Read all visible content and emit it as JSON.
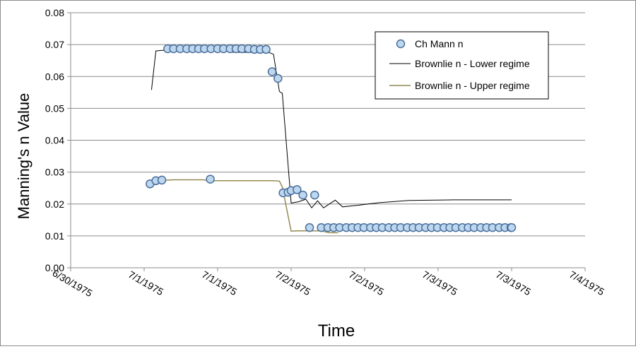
{
  "chart_data": {
    "type": "scatter",
    "title": "",
    "xlabel": "Time",
    "ylabel": "Manning's n Value",
    "x_ticks": [
      "6/30/1975",
      "7/1/1975",
      "7/1/1975",
      "7/2/1975",
      "7/2/1975",
      "7/3/1975",
      "7/3/1975",
      "7/4/1975"
    ],
    "x_tick_days": [
      0,
      0.5,
      1.0,
      1.5,
      2.0,
      2.5,
      3.0,
      3.5
    ],
    "xlim_days": [
      0,
      3.5
    ],
    "ylim": [
      0,
      0.08
    ],
    "y_ticks": [
      "0.00",
      "0.01",
      "0.02",
      "0.03",
      "0.04",
      "0.05",
      "0.06",
      "0.07",
      "0.08"
    ],
    "y_tick_values": [
      0,
      0.01,
      0.02,
      0.03,
      0.04,
      0.05,
      0.06,
      0.07,
      0.08
    ],
    "grid": "horizontal",
    "legend_position": "top-right",
    "series": [
      {
        "name": "Ch Mann n",
        "kind": "markers",
        "color": "#bdd7ee",
        "edge": "#4a6e9c",
        "x": [
          0.54,
          0.58,
          0.62,
          0.66,
          0.7,
          0.745,
          0.79,
          0.83,
          0.87,
          0.91,
          0.955,
          0.95,
          1.0,
          1.04,
          1.085,
          1.125,
          1.165,
          1.21,
          1.25,
          1.29,
          1.33,
          1.37,
          1.41,
          1.445,
          1.48,
          1.5,
          1.54,
          1.58,
          1.625,
          1.66,
          1.705,
          1.75,
          1.79,
          1.83,
          1.875,
          1.915,
          1.955,
          1.995,
          2.04,
          2.08,
          2.12,
          2.165,
          2.205,
          2.245,
          2.29,
          2.33,
          2.37,
          2.415,
          2.455,
          2.495,
          2.54,
          2.58,
          2.62,
          2.665,
          2.705,
          2.745,
          2.79,
          2.83,
          2.87,
          2.915,
          2.955,
          2.995,
          3.0
        ],
        "y": [
          0.0263,
          0.0273,
          0.0275,
          0.0687,
          0.0687,
          0.0687,
          0.0687,
          0.0687,
          0.0687,
          0.0687,
          0.0687,
          0.0278,
          0.0687,
          0.0687,
          0.0687,
          0.0687,
          0.0687,
          0.0687,
          0.0685,
          0.0685,
          0.0685,
          0.0615,
          0.0594,
          0.0235,
          0.0237,
          0.0242,
          0.0245,
          0.0228,
          0.0126,
          0.0228,
          0.0126,
          0.0126,
          0.0126,
          0.0126,
          0.0126,
          0.0126,
          0.0126,
          0.0126,
          0.0126,
          0.0126,
          0.0126,
          0.0126,
          0.0126,
          0.0126,
          0.0126,
          0.0126,
          0.0126,
          0.0126,
          0.0126,
          0.0126,
          0.0126,
          0.0126,
          0.0126,
          0.0126,
          0.0126,
          0.0126,
          0.0126,
          0.0126,
          0.0126,
          0.0126,
          0.0126,
          0.0126,
          0.0126
        ]
      },
      {
        "name": "Brownlie n - Lower regime",
        "kind": "line",
        "color": "#000000",
        "x": [
          0.55,
          0.58,
          0.62,
          0.7,
          0.9,
          0.95,
          1.0,
          1.1,
          1.35,
          1.38,
          1.42,
          1.44,
          1.5,
          1.55,
          1.6,
          1.64,
          1.68,
          1.72,
          1.8,
          1.85,
          1.95,
          2.1,
          2.3,
          2.6,
          3.0
        ],
        "y": [
          0.0558,
          0.068,
          0.0682,
          0.0682,
          0.0683,
          0.0685,
          0.0683,
          0.0676,
          0.0675,
          0.067,
          0.0553,
          0.0547,
          0.0203,
          0.0207,
          0.0215,
          0.0188,
          0.021,
          0.0188,
          0.0212,
          0.0191,
          0.0196,
          0.0204,
          0.0211,
          0.0213,
          0.0213
        ]
      },
      {
        "name": "Brownlie n - Upper regime",
        "kind": "line",
        "color": "#948a54",
        "x": [
          0.55,
          0.62,
          0.7,
          0.9,
          0.95,
          1.0,
          1.2,
          1.3,
          1.37,
          1.42,
          1.44,
          1.5,
          1.55,
          1.62,
          1.7,
          1.76,
          1.82
        ],
        "y": [
          0.0274,
          0.0274,
          0.0276,
          0.0276,
          0.0273,
          0.0273,
          0.0273,
          0.0273,
          0.0273,
          0.0272,
          0.0253,
          0.0115,
          0.0116,
          0.0116,
          0.0116,
          0.011,
          0.011
        ]
      }
    ]
  }
}
